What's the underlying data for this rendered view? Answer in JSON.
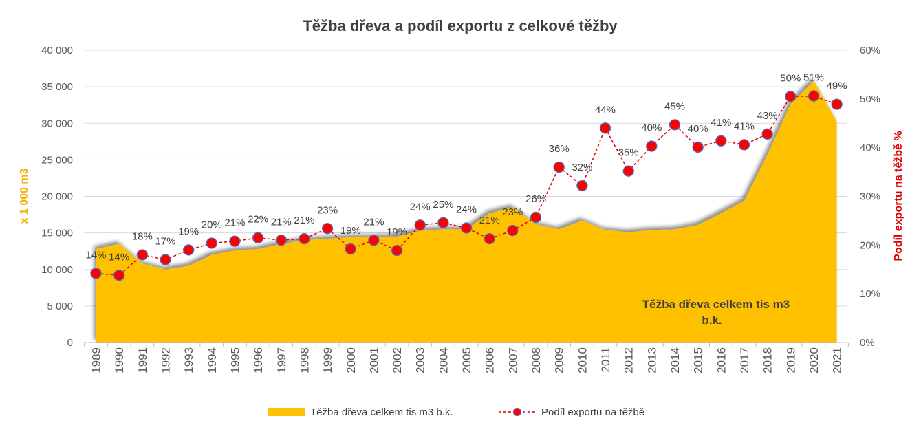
{
  "chart_data": {
    "type": "area+line",
    "title": "Těžba dřeva a podíl exportu z celkové těžby",
    "ylabel_left": "x 1 000 m3",
    "ylabel_right": "Podíl exportu na těžbě %",
    "ylim_left": [
      0,
      40000
    ],
    "ylim_right": [
      0,
      60
    ],
    "yticks_left": [
      "0",
      "5 000",
      "10 000",
      "15 000",
      "20 000",
      "25 000",
      "30 000",
      "35 000",
      "40 000"
    ],
    "yticks_right": [
      "0%",
      "10%",
      "20%",
      "30%",
      "40%",
      "50%",
      "60%"
    ],
    "categories": [
      "1989",
      "1990",
      "1991",
      "1992",
      "1993",
      "1994",
      "1995",
      "1996",
      "1997",
      "1998",
      "1999",
      "2000",
      "2001",
      "2002",
      "2003",
      "2004",
      "2005",
      "2006",
      "2007",
      "2008",
      "2009",
      "2010",
      "2011",
      "2012",
      "2013",
      "2014",
      "2015",
      "2016",
      "2017",
      "2018",
      "2019",
      "2020",
      "2021"
    ],
    "area_label": "Těžba dřeva celkem tis m3 b.k.",
    "area_label_line1": "Těžba dřeva celkem tis m3",
    "area_label_line2": "b.k.",
    "series": [
      {
        "name": "Těžba dřeva celkem tis m3 b.k.",
        "type": "area",
        "axis": "left",
        "color": "#FFC000",
        "values": [
          12800,
          13500,
          10800,
          10000,
          10500,
          12000,
          12600,
          12800,
          13500,
          14000,
          14200,
          14400,
          14400,
          14500,
          15300,
          15500,
          15500,
          17700,
          18500,
          16200,
          15500,
          16700,
          15400,
          15100,
          15400,
          15500,
          16100,
          17700,
          19400,
          25700,
          32600,
          35800,
          30200
        ]
      },
      {
        "name": "Podíl exportu na těžbě",
        "type": "line",
        "axis": "right",
        "color": "#E00000",
        "marker_color": "#FF0000",
        "values": [
          14,
          14,
          18,
          17,
          19,
          20,
          21,
          22,
          21,
          21,
          23,
          19,
          21,
          19,
          24,
          25,
          24,
          21,
          23,
          26,
          36,
          32,
          44,
          35,
          40,
          45,
          40,
          41,
          41,
          43,
          50,
          51,
          49
        ],
        "plot_values": [
          14.2,
          13.8,
          18.0,
          17.0,
          19.0,
          20.4,
          20.8,
          21.5,
          21.0,
          21.3,
          23.4,
          19.2,
          21.0,
          18.9,
          24.1,
          24.6,
          23.5,
          21.3,
          23.0,
          25.7,
          36.0,
          32.2,
          44.0,
          35.2,
          40.3,
          44.7,
          40.1,
          41.4,
          40.6,
          42.8,
          50.5,
          50.6,
          48.9
        ],
        "labels": [
          "14%",
          "14%",
          "18%",
          "17%",
          "19%",
          "20%",
          "21%",
          "22%",
          "21%",
          "21%",
          "23%",
          "19%",
          "21%",
          "19%",
          "24%",
          "25%",
          "24%",
          "21%",
          "23%",
          "26%",
          "36%",
          "32%",
          "44%",
          "35%",
          "40%",
          "45%",
          "40%",
          "41%",
          "41%",
          "43%",
          "50%",
          "51%",
          "49%"
        ]
      }
    ],
    "legend": [
      "Těžba dřeva celkem tis m3 b.k.",
      "Podíl exportu na těžbě"
    ],
    "legend_position": "bottom",
    "grid": true
  }
}
